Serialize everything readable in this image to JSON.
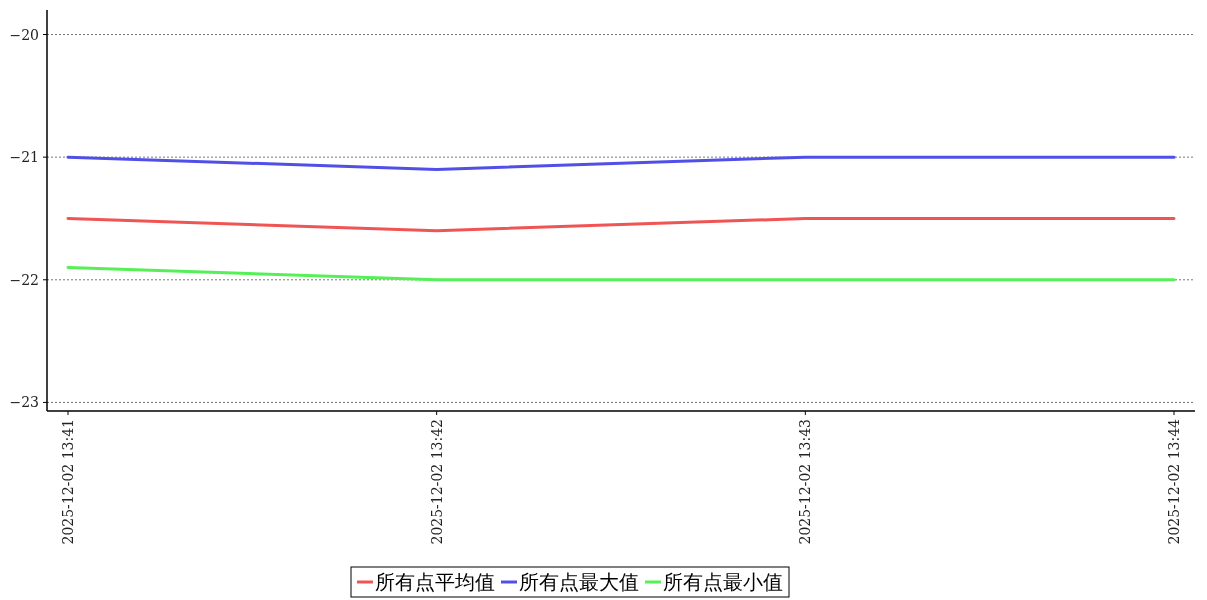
{
  "chart_data": {
    "type": "line",
    "categories": [
      "2025-12-02 13:41",
      "2025-12-02 13:42",
      "2025-12-02 13:43",
      "2025-12-02 13:44"
    ],
    "series": [
      {
        "name": "所有点平均值",
        "color": "#f05555",
        "values": [
          -21.5,
          -21.6,
          -21.5,
          -21.5
        ]
      },
      {
        "name": "所有点最大值",
        "color": "#5050e8",
        "values": [
          -21,
          -21.1,
          -21,
          -21
        ]
      },
      {
        "name": "所有点最小值",
        "color": "#55f055",
        "values": [
          -21.9,
          -22,
          -22,
          -22
        ]
      }
    ],
    "ylim": [
      -23.07,
      -19.8
    ],
    "yticks": [
      -23,
      -22,
      -21,
      -20
    ],
    "grid": "y",
    "legend": "bottom",
    "line_style": "solid",
    "marker": "none"
  }
}
